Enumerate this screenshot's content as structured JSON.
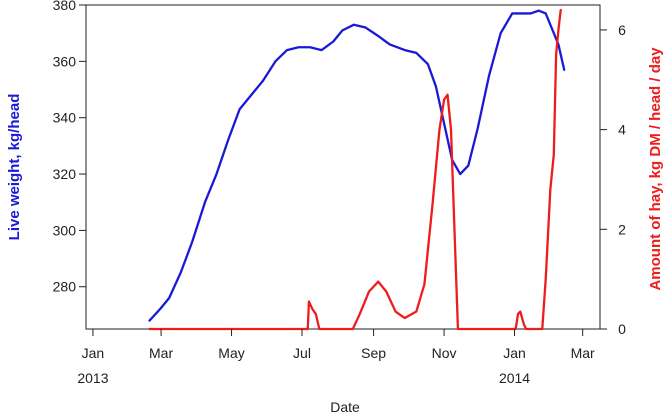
{
  "chart_data": {
    "type": "line",
    "title": "",
    "xlabel": "Date",
    "ylabel_left": "Live weight, kg/head",
    "ylabel_right": "Amount of hay, kg DM / head / day",
    "xlim": [
      "2012-12-26",
      "2014-03-16"
    ],
    "ylim_left": [
      265,
      380
    ],
    "ylim_right": [
      0,
      6.5
    ],
    "x_ticks": [
      {
        "date": "2013-01-01",
        "line1": "Jan",
        "line2": "2013"
      },
      {
        "date": "2013-03-01",
        "line1": "Mar",
        "line2": ""
      },
      {
        "date": "2013-05-01",
        "line1": "May",
        "line2": ""
      },
      {
        "date": "2013-07-01",
        "line1": "Jul",
        "line2": ""
      },
      {
        "date": "2013-09-01",
        "line1": "Sep",
        "line2": ""
      },
      {
        "date": "2013-11-01",
        "line1": "Nov",
        "line2": ""
      },
      {
        "date": "2014-01-01",
        "line1": "Jan",
        "line2": "2014"
      },
      {
        "date": "2014-03-01",
        "line1": "Mar",
        "line2": ""
      }
    ],
    "y_ticks_left": [
      280,
      300,
      320,
      340,
      360,
      380
    ],
    "y_ticks_right": [
      0,
      2,
      4,
      6
    ],
    "grid": false,
    "legend": "none",
    "series": [
      {
        "axis": "left",
        "color": "#1a1ad6",
        "points": [
          [
            "2013-02-19",
            268
          ],
          [
            "2013-02-28",
            272
          ],
          [
            "2013-03-08",
            276
          ],
          [
            "2013-03-18",
            285
          ],
          [
            "2013-03-28",
            296
          ],
          [
            "2013-04-08",
            310
          ],
          [
            "2013-04-18",
            320
          ],
          [
            "2013-04-28",
            332
          ],
          [
            "2013-05-08",
            343
          ],
          [
            "2013-05-18",
            348
          ],
          [
            "2013-05-28",
            353
          ],
          [
            "2013-06-08",
            360
          ],
          [
            "2013-06-18",
            364
          ],
          [
            "2013-06-28",
            365
          ],
          [
            "2013-07-08",
            365
          ],
          [
            "2013-07-18",
            364
          ],
          [
            "2013-07-28",
            367
          ],
          [
            "2013-08-05",
            371
          ],
          [
            "2013-08-15",
            373
          ],
          [
            "2013-08-25",
            372
          ],
          [
            "2013-09-05",
            369
          ],
          [
            "2013-09-15",
            366
          ],
          [
            "2013-09-28",
            364
          ],
          [
            "2013-10-08",
            363
          ],
          [
            "2013-10-18",
            359
          ],
          [
            "2013-10-25",
            351
          ],
          [
            "2013-11-01",
            338
          ],
          [
            "2013-11-08",
            325
          ],
          [
            "2013-11-15",
            320
          ],
          [
            "2013-11-22",
            323
          ],
          [
            "2013-11-30",
            336
          ],
          [
            "2013-12-10",
            355
          ],
          [
            "2013-12-20",
            370
          ],
          [
            "2013-12-30",
            377
          ],
          [
            "2014-01-08",
            377
          ],
          [
            "2014-01-15",
            377
          ],
          [
            "2014-01-22",
            378
          ],
          [
            "2014-01-28",
            377
          ],
          [
            "2014-02-02",
            372
          ],
          [
            "2014-02-08",
            366
          ],
          [
            "2014-02-13",
            357
          ]
        ]
      },
      {
        "axis": "right",
        "color": "#ee1c1c",
        "points": [
          [
            "2013-02-19",
            0
          ],
          [
            "2013-07-06",
            0
          ],
          [
            "2013-07-07",
            0.55
          ],
          [
            "2013-07-10",
            0.4
          ],
          [
            "2013-07-13",
            0.3
          ],
          [
            "2013-07-16",
            0
          ],
          [
            "2013-08-14",
            0
          ],
          [
            "2013-08-20",
            0.3
          ],
          [
            "2013-08-28",
            0.75
          ],
          [
            "2013-09-05",
            0.95
          ],
          [
            "2013-09-12",
            0.75
          ],
          [
            "2013-09-20",
            0.35
          ],
          [
            "2013-09-28",
            0.22
          ],
          [
            "2013-10-08",
            0.35
          ],
          [
            "2013-10-15",
            0.9
          ],
          [
            "2013-10-22",
            2.5
          ],
          [
            "2013-10-28",
            4.0
          ],
          [
            "2013-11-01",
            4.6
          ],
          [
            "2013-11-04",
            4.7
          ],
          [
            "2013-11-07",
            4.0
          ],
          [
            "2013-11-10",
            2.0
          ],
          [
            "2013-11-13",
            0
          ],
          [
            "2014-01-02",
            0
          ],
          [
            "2014-01-04",
            0.3
          ],
          [
            "2014-01-06",
            0.35
          ],
          [
            "2014-01-09",
            0.1
          ],
          [
            "2014-01-11",
            0
          ],
          [
            "2014-01-25",
            0
          ],
          [
            "2014-01-28",
            1.0
          ],
          [
            "2014-02-01",
            2.8
          ],
          [
            "2014-02-04",
            3.5
          ],
          [
            "2014-02-06",
            5.5
          ],
          [
            "2014-02-08",
            6.0
          ],
          [
            "2014-02-10",
            6.4
          ]
        ]
      }
    ]
  }
}
